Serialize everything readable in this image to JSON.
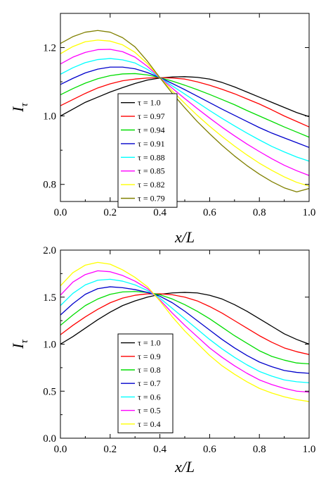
{
  "chart_data": [
    {
      "type": "line",
      "xlabel": "x/L",
      "ylabel": "I",
      "ylabel_subscript": "τ",
      "xlim": [
        0.0,
        1.0
      ],
      "ylim": [
        0.75,
        1.3
      ],
      "xticks": [
        0.0,
        0.2,
        0.4,
        0.6,
        0.8,
        1.0
      ],
      "xtick_labels": [
        "0.0",
        "0.2",
        "0.4",
        "0.6",
        "0.8",
        "1.0"
      ],
      "yticks": [
        0.8,
        1.0,
        1.2
      ],
      "ytick_labels": [
        "0.8",
        "1.0",
        "1.2"
      ],
      "grid": false,
      "legend_position": "lower-left",
      "x": [
        0.0,
        0.05,
        0.1,
        0.15,
        0.2,
        0.25,
        0.3,
        0.35,
        0.4,
        0.45,
        0.5,
        0.55,
        0.6,
        0.65,
        0.7,
        0.75,
        0.8,
        0.85,
        0.9,
        0.95,
        1.0
      ],
      "series": [
        {
          "name": "τ = 1.0",
          "color": "#000000",
          "values": [
            1.0,
            1.02,
            1.04,
            1.055,
            1.07,
            1.083,
            1.095,
            1.105,
            1.111,
            1.114,
            1.115,
            1.113,
            1.108,
            1.098,
            1.085,
            1.07,
            1.055,
            1.04,
            1.025,
            1.01,
            0.998
          ]
        },
        {
          "name": "τ = 0.97",
          "color": "#ff0000",
          "values": [
            1.03,
            1.048,
            1.066,
            1.082,
            1.094,
            1.103,
            1.108,
            1.111,
            1.112,
            1.111,
            1.108,
            1.1,
            1.09,
            1.078,
            1.065,
            1.05,
            1.035,
            1.018,
            1.0,
            0.984,
            0.968
          ]
        },
        {
          "name": "τ = 0.94",
          "color": "#00dd00",
          "values": [
            1.062,
            1.08,
            1.096,
            1.109,
            1.118,
            1.123,
            1.124,
            1.12,
            1.112,
            1.102,
            1.09,
            1.077,
            1.063,
            1.048,
            1.033,
            1.016,
            1.0,
            0.984,
            0.968,
            0.953,
            0.938
          ]
        },
        {
          "name": "τ = 0.91",
          "color": "#0000cc",
          "values": [
            1.092,
            1.11,
            1.126,
            1.137,
            1.143,
            1.143,
            1.138,
            1.127,
            1.112,
            1.095,
            1.077,
            1.058,
            1.039,
            1.02,
            1.002,
            0.984,
            0.966,
            0.95,
            0.936,
            0.922,
            0.908
          ]
        },
        {
          "name": "τ = 0.88",
          "color": "#00ffff",
          "values": [
            1.122,
            1.141,
            1.156,
            1.165,
            1.168,
            1.164,
            1.155,
            1.136,
            1.112,
            1.088,
            1.064,
            1.04,
            1.016,
            0.993,
            0.971,
            0.95,
            0.93,
            0.911,
            0.895,
            0.88,
            0.868
          ]
        },
        {
          "name": "τ = 0.85",
          "color": "#ff00ff",
          "values": [
            1.152,
            1.172,
            1.186,
            1.194,
            1.195,
            1.188,
            1.172,
            1.145,
            1.112,
            1.081,
            1.051,
            1.022,
            0.994,
            0.967,
            0.942,
            0.918,
            0.896,
            0.875,
            0.856,
            0.84,
            0.826
          ]
        },
        {
          "name": "τ = 0.82",
          "color": "#ffff00",
          "values": [
            1.182,
            1.203,
            1.217,
            1.222,
            1.219,
            1.208,
            1.186,
            1.153,
            1.112,
            1.073,
            1.037,
            1.002,
            0.97,
            0.94,
            0.912,
            0.886,
            0.862,
            0.841,
            0.822,
            0.806,
            0.795
          ]
        },
        {
          "name": "τ = 0.79",
          "color": "#808000",
          "values": [
            1.212,
            1.232,
            1.245,
            1.25,
            1.245,
            1.229,
            1.202,
            1.16,
            1.112,
            1.066,
            1.024,
            0.984,
            0.948,
            0.914,
            0.883,
            0.855,
            0.83,
            0.808,
            0.79,
            0.778,
            0.788
          ]
        }
      ]
    },
    {
      "type": "line",
      "xlabel": "x/L",
      "ylabel": "I",
      "ylabel_subscript": "τ",
      "xlim": [
        0.0,
        1.0
      ],
      "ylim": [
        0.0,
        2.0
      ],
      "xticks": [
        0.0,
        0.2,
        0.4,
        0.6,
        0.8,
        1.0
      ],
      "xtick_labels": [
        "0.0",
        "0.2",
        "0.4",
        "0.6",
        "0.8",
        "1.0"
      ],
      "yticks": [
        0.0,
        0.5,
        1.0,
        1.5,
        2.0
      ],
      "ytick_labels": [
        "0.0",
        "0.5",
        "1.0",
        "1.5",
        "2.0"
      ],
      "grid": false,
      "legend_position": "lower-left",
      "x": [
        0.0,
        0.05,
        0.1,
        0.15,
        0.2,
        0.25,
        0.3,
        0.35,
        0.4,
        0.45,
        0.5,
        0.55,
        0.6,
        0.65,
        0.7,
        0.75,
        0.8,
        0.85,
        0.9,
        0.95,
        1.0
      ],
      "series": [
        {
          "name": "τ = 1.0",
          "color": "#000000",
          "values": [
            1.0,
            1.08,
            1.17,
            1.26,
            1.34,
            1.41,
            1.46,
            1.5,
            1.53,
            1.545,
            1.55,
            1.545,
            1.52,
            1.48,
            1.42,
            1.35,
            1.27,
            1.19,
            1.11,
            1.05,
            1.0
          ]
        },
        {
          "name": "τ = 0.9",
          "color": "#ff0000",
          "values": [
            1.1,
            1.2,
            1.29,
            1.37,
            1.44,
            1.49,
            1.52,
            1.535,
            1.535,
            1.525,
            1.5,
            1.46,
            1.4,
            1.33,
            1.25,
            1.17,
            1.09,
            1.02,
            0.96,
            0.92,
            0.89
          ]
        },
        {
          "name": "τ = 0.8",
          "color": "#00dd00",
          "values": [
            1.2,
            1.31,
            1.41,
            1.48,
            1.53,
            1.555,
            1.56,
            1.55,
            1.525,
            1.48,
            1.42,
            1.35,
            1.27,
            1.18,
            1.09,
            1.01,
            0.93,
            0.87,
            0.83,
            0.8,
            0.79
          ]
        },
        {
          "name": "τ = 0.7",
          "color": "#0000cc",
          "values": [
            1.31,
            1.43,
            1.53,
            1.59,
            1.61,
            1.6,
            1.58,
            1.55,
            1.51,
            1.44,
            1.35,
            1.25,
            1.15,
            1.05,
            0.96,
            0.88,
            0.81,
            0.76,
            0.72,
            0.7,
            0.69
          ]
        },
        {
          "name": "τ = 0.6",
          "color": "#00ffff",
          "values": [
            1.41,
            1.54,
            1.63,
            1.68,
            1.69,
            1.67,
            1.63,
            1.57,
            1.49,
            1.38,
            1.27,
            1.16,
            1.05,
            0.95,
            0.86,
            0.78,
            0.71,
            0.66,
            0.62,
            0.6,
            0.59
          ]
        },
        {
          "name": "τ = 0.5",
          "color": "#ff00ff",
          "values": [
            1.52,
            1.66,
            1.74,
            1.78,
            1.77,
            1.73,
            1.67,
            1.59,
            1.47,
            1.33,
            1.2,
            1.08,
            0.96,
            0.86,
            0.77,
            0.69,
            0.62,
            0.57,
            0.53,
            0.5,
            0.49
          ]
        },
        {
          "name": "τ = 0.4",
          "color": "#ffff00",
          "values": [
            1.62,
            1.76,
            1.84,
            1.87,
            1.85,
            1.79,
            1.71,
            1.61,
            1.46,
            1.29,
            1.14,
            1.01,
            0.88,
            0.77,
            0.68,
            0.6,
            0.53,
            0.48,
            0.44,
            0.41,
            0.39
          ]
        }
      ]
    }
  ]
}
